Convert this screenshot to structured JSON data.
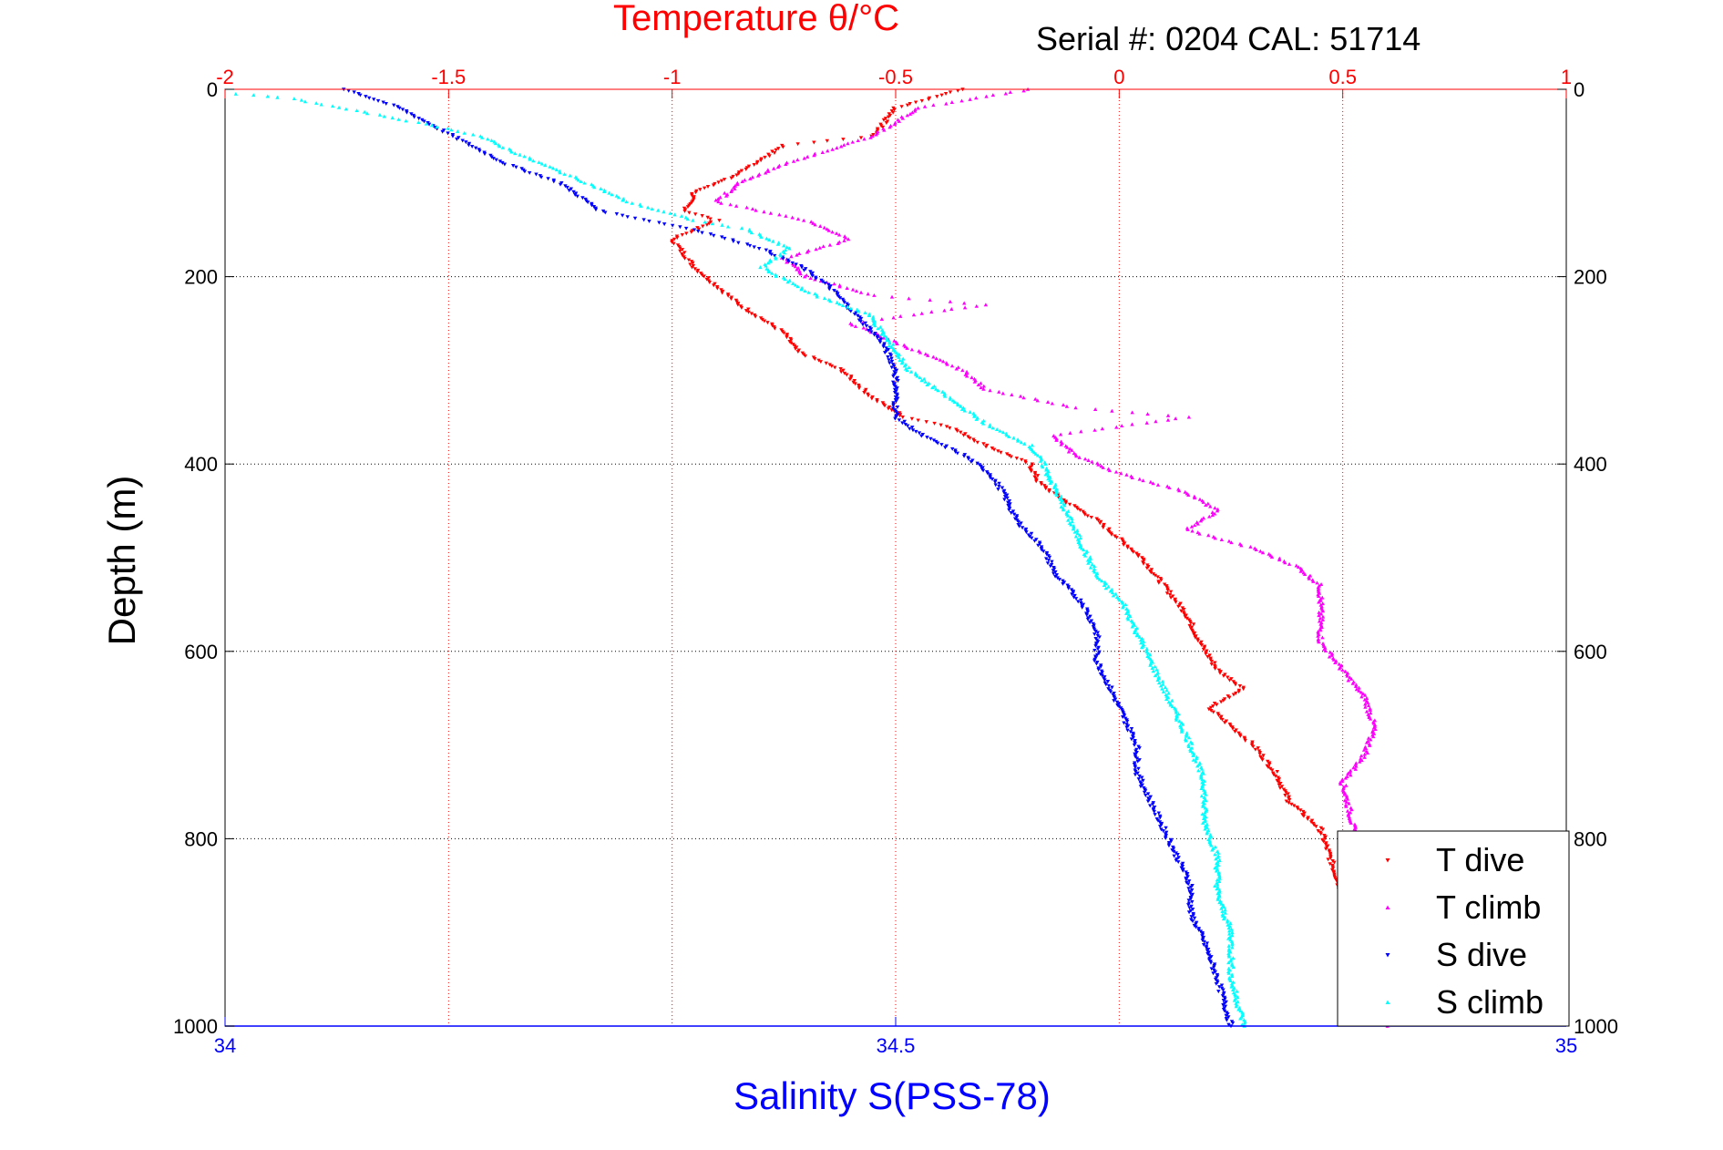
{
  "header": {
    "title": "Temperature θ/°C",
    "serial_text": "Serial #: 0204  CAL: 51714"
  },
  "chart_data": {
    "type": "scatter",
    "title": "Temperature θ/°C",
    "annotation": "Serial #: 0204  CAL: 51714",
    "ylabel": "Depth (m)",
    "xlabel": "Salinity S(PSS-78)",
    "x2label": "Temperature θ/°C",
    "y": {
      "range": [
        0,
        1000
      ],
      "inverted": true,
      "ticks": [
        "0",
        "200",
        "400",
        "600",
        "800",
        "1000"
      ],
      "tick_values": [
        0,
        200,
        400,
        600,
        800,
        1000
      ]
    },
    "x_salinity": {
      "range": [
        34,
        35
      ],
      "ticks": [
        "34",
        "34.5",
        "35"
      ],
      "tick_values": [
        34,
        34.5,
        35
      ]
    },
    "x_temperature": {
      "range": [
        -2,
        1
      ],
      "ticks": [
        "-2",
        "-1.5",
        "-1",
        "-0.5",
        "0",
        "0.5",
        "1"
      ],
      "tick_values": [
        -2,
        -1.5,
        -1,
        -0.5,
        0,
        0.5,
        1
      ]
    },
    "grid": true,
    "legend_position": "bottom-right",
    "colors": {
      "temp_axis": "#ff0000",
      "sal_axis": "#0000ff",
      "grid_temp": "#ff0000",
      "grid_depth": "#000000"
    },
    "series": [
      {
        "name": "T dive",
        "axis": "temperature",
        "color": "#ff0000",
        "marker": "triangle-down",
        "points": [
          [
            -0.35,
            0
          ],
          [
            -0.5,
            20
          ],
          [
            -0.55,
            50
          ],
          [
            -0.75,
            60
          ],
          [
            -0.85,
            90
          ],
          [
            -0.95,
            110
          ],
          [
            -0.97,
            130
          ],
          [
            -0.9,
            140
          ],
          [
            -1.0,
            160
          ],
          [
            -0.95,
            190
          ],
          [
            -0.85,
            230
          ],
          [
            -0.75,
            260
          ],
          [
            -0.72,
            280
          ],
          [
            -0.62,
            300
          ],
          [
            -0.55,
            330
          ],
          [
            -0.48,
            350
          ],
          [
            -0.38,
            360
          ],
          [
            -0.3,
            380
          ],
          [
            -0.2,
            400
          ],
          [
            -0.18,
            420
          ],
          [
            -0.12,
            440
          ],
          [
            -0.05,
            460
          ],
          [
            0.0,
            480
          ],
          [
            0.05,
            500
          ],
          [
            0.1,
            530
          ],
          [
            0.15,
            560
          ],
          [
            0.18,
            590
          ],
          [
            0.22,
            620
          ],
          [
            0.28,
            640
          ],
          [
            0.2,
            660
          ],
          [
            0.3,
            700
          ],
          [
            0.35,
            730
          ],
          [
            0.38,
            760
          ],
          [
            0.45,
            790
          ],
          [
            0.6,
            1000
          ]
        ]
      },
      {
        "name": "T climb",
        "axis": "temperature",
        "color": "#ff00ff",
        "marker": "triangle-up",
        "points": [
          [
            -0.2,
            0
          ],
          [
            -0.45,
            20
          ],
          [
            -0.55,
            50
          ],
          [
            -0.75,
            80
          ],
          [
            -0.85,
            100
          ],
          [
            -0.9,
            120
          ],
          [
            -0.7,
            140
          ],
          [
            -0.6,
            160
          ],
          [
            -0.75,
            180
          ],
          [
            -0.7,
            200
          ],
          [
            -0.55,
            220
          ],
          [
            -0.3,
            230
          ],
          [
            -0.6,
            250
          ],
          [
            -0.5,
            270
          ],
          [
            -0.35,
            300
          ],
          [
            -0.3,
            320
          ],
          [
            -0.1,
            340
          ],
          [
            0.15,
            350
          ],
          [
            -0.15,
            370
          ],
          [
            -0.1,
            390
          ],
          [
            0.0,
            410
          ],
          [
            0.15,
            430
          ],
          [
            0.22,
            450
          ],
          [
            0.15,
            470
          ],
          [
            0.3,
            490
          ],
          [
            0.4,
            510
          ],
          [
            0.45,
            530
          ],
          [
            0.45,
            560
          ],
          [
            0.45,
            590
          ],
          [
            0.5,
            620
          ],
          [
            0.55,
            650
          ],
          [
            0.57,
            680
          ],
          [
            0.55,
            710
          ],
          [
            0.5,
            740
          ],
          [
            0.52,
            780
          ],
          [
            0.6,
            1000
          ]
        ]
      },
      {
        "name": "S dive",
        "axis": "salinity",
        "color": "#0000ff",
        "marker": "triangle-down",
        "points": [
          [
            34.09,
            0
          ],
          [
            34.13,
            20
          ],
          [
            34.17,
            50
          ],
          [
            34.21,
            80
          ],
          [
            34.25,
            100
          ],
          [
            34.28,
            130
          ],
          [
            34.35,
            150
          ],
          [
            34.4,
            170
          ],
          [
            34.43,
            190
          ],
          [
            34.45,
            210
          ],
          [
            34.47,
            240
          ],
          [
            34.49,
            270
          ],
          [
            34.5,
            300
          ],
          [
            34.5,
            330
          ],
          [
            34.5,
            350
          ],
          [
            34.52,
            370
          ],
          [
            34.55,
            390
          ],
          [
            34.57,
            410
          ],
          [
            34.58,
            430
          ],
          [
            34.59,
            460
          ],
          [
            34.61,
            490
          ],
          [
            34.62,
            520
          ],
          [
            34.64,
            550
          ],
          [
            34.65,
            580
          ],
          [
            34.65,
            610
          ],
          [
            34.66,
            640
          ],
          [
            34.67,
            670
          ],
          [
            34.68,
            700
          ],
          [
            34.68,
            730
          ],
          [
            34.69,
            760
          ],
          [
            34.7,
            790
          ],
          [
            34.71,
            820
          ],
          [
            34.72,
            850
          ],
          [
            34.72,
            880
          ],
          [
            34.73,
            910
          ],
          [
            34.74,
            950
          ],
          [
            34.75,
            1000
          ]
        ]
      },
      {
        "name": "S climb",
        "axis": "salinity",
        "color": "#00ffff",
        "marker": "triangle-up",
        "points": [
          [
            34.01,
            5
          ],
          [
            34.05,
            10
          ],
          [
            34.16,
            40
          ],
          [
            34.19,
            50
          ],
          [
            34.22,
            70
          ],
          [
            34.27,
            100
          ],
          [
            34.3,
            120
          ],
          [
            34.35,
            140
          ],
          [
            34.39,
            150
          ],
          [
            34.42,
            170
          ],
          [
            34.4,
            190
          ],
          [
            34.44,
            220
          ],
          [
            34.48,
            240
          ],
          [
            34.49,
            260
          ],
          [
            34.5,
            280
          ],
          [
            34.51,
            300
          ],
          [
            34.53,
            320
          ],
          [
            34.55,
            340
          ],
          [
            34.57,
            360
          ],
          [
            34.6,
            380
          ],
          [
            34.61,
            400
          ],
          [
            34.62,
            430
          ],
          [
            34.63,
            460
          ],
          [
            34.64,
            490
          ],
          [
            34.65,
            520
          ],
          [
            34.67,
            550
          ],
          [
            34.68,
            580
          ],
          [
            34.69,
            610
          ],
          [
            34.7,
            640
          ],
          [
            34.71,
            670
          ],
          [
            34.72,
            700
          ],
          [
            34.73,
            740
          ],
          [
            34.73,
            780
          ],
          [
            34.74,
            820
          ],
          [
            34.74,
            860
          ],
          [
            34.75,
            900
          ],
          [
            34.75,
            950
          ],
          [
            34.76,
            1000
          ]
        ]
      }
    ]
  }
}
